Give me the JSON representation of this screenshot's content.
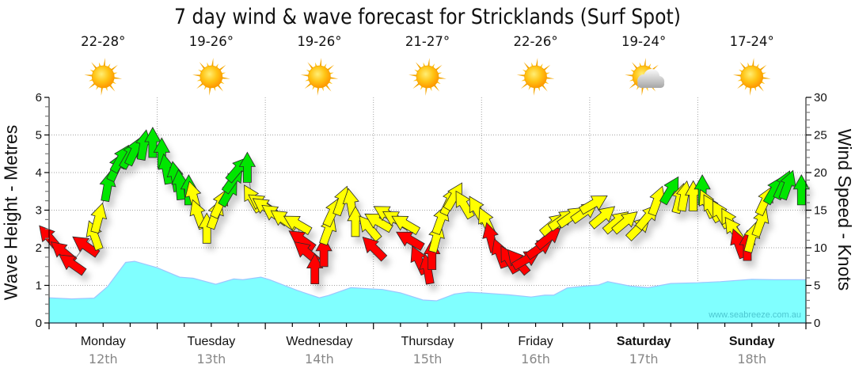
{
  "chart_data": {
    "type": "area",
    "title": "7 day wind & wave forecast for Stricklands (Surf Spot)",
    "ylabel": "Wave Height - Metres",
    "y2label": "Wind Speed - Knots",
    "xlim": [
      0,
      168
    ],
    "ylim": [
      0,
      6
    ],
    "yticks": [
      0,
      1,
      2,
      3,
      4,
      5,
      6
    ],
    "y2lim": [
      0,
      30
    ],
    "y2ticks": [
      0,
      5,
      10,
      15,
      20,
      25,
      30
    ],
    "grid": true,
    "x_tick_labels": [
      {
        "day": "Monday",
        "date": "12th",
        "weekend": false
      },
      {
        "day": "Tuesday",
        "date": "13th",
        "weekend": false
      },
      {
        "day": "Wednesday",
        "date": "14th",
        "weekend": false
      },
      {
        "day": "Thursday",
        "date": "15th",
        "weekend": false
      },
      {
        "day": "Friday",
        "date": "16th",
        "weekend": false
      },
      {
        "day": "Saturday",
        "date": "17th",
        "weekend": true
      },
      {
        "day": "Sunday",
        "date": "18th",
        "weekend": true
      }
    ],
    "watermark": "www.seabreeze.com.au",
    "wave_fill_color": "#80ffff",
    "wave_line_color": "#9cc6ff",
    "wave_height_m": [
      [
        0,
        0.67
      ],
      [
        5,
        0.64
      ],
      [
        10,
        0.66
      ],
      [
        13,
        0.97
      ],
      [
        17,
        1.61
      ],
      [
        19,
        1.64
      ],
      [
        24,
        1.47
      ],
      [
        29,
        1.22
      ],
      [
        32,
        1.19
      ],
      [
        37,
        1.03
      ],
      [
        41,
        1.17
      ],
      [
        43,
        1.15
      ],
      [
        47,
        1.22
      ],
      [
        49,
        1.15
      ],
      [
        55,
        0.87
      ],
      [
        60,
        0.67
      ],
      [
        62,
        0.73
      ],
      [
        67,
        0.94
      ],
      [
        71,
        0.91
      ],
      [
        74,
        0.89
      ],
      [
        78,
        0.8
      ],
      [
        83,
        0.61
      ],
      [
        86,
        0.59
      ],
      [
        90,
        0.77
      ],
      [
        93,
        0.82
      ],
      [
        96,
        0.8
      ],
      [
        102,
        0.75
      ],
      [
        107,
        0.69
      ],
      [
        110,
        0.74
      ],
      [
        112,
        0.74
      ],
      [
        115,
        0.93
      ],
      [
        119,
        0.98
      ],
      [
        122,
        1.01
      ],
      [
        124,
        1.1
      ],
      [
        129,
        0.98
      ],
      [
        133,
        0.94
      ],
      [
        138,
        1.05
      ],
      [
        144,
        1.07
      ],
      [
        149,
        1.1
      ],
      [
        156,
        1.16
      ],
      [
        161,
        1.15
      ],
      [
        168,
        1.15
      ]
    ],
    "wind_level_colors": {
      "red": "#ff0000",
      "yellow": "#ffff00",
      "green": "#00e600"
    },
    "wind_knots": [
      [
        0,
        11.4,
        320,
        "red"
      ],
      [
        3,
        9.5,
        310,
        "red"
      ],
      [
        5,
        7.9,
        305,
        "red"
      ],
      [
        8,
        10.3,
        305,
        "red"
      ],
      [
        10,
        11.7,
        340,
        "yellow"
      ],
      [
        11,
        14.0,
        15,
        "yellow"
      ],
      [
        13,
        18.2,
        10,
        "green"
      ],
      [
        15,
        20.8,
        25,
        "green"
      ],
      [
        16,
        21.9,
        30,
        "green"
      ],
      [
        18,
        22.4,
        30,
        "green"
      ],
      [
        19,
        22.9,
        25,
        "green"
      ],
      [
        21,
        23.7,
        10,
        "green"
      ],
      [
        23,
        24.0,
        0,
        "green"
      ],
      [
        25,
        22.6,
        0,
        "green"
      ],
      [
        26,
        20.5,
        350,
        "green"
      ],
      [
        28,
        19.5,
        350,
        "green"
      ],
      [
        29,
        18.4,
        355,
        "green"
      ],
      [
        31,
        17.7,
        0,
        "green"
      ],
      [
        32,
        16.9,
        345,
        "yellow"
      ],
      [
        33,
        14.5,
        340,
        "yellow"
      ],
      [
        35,
        12.6,
        0,
        "yellow"
      ],
      [
        37,
        14.5,
        20,
        "yellow"
      ],
      [
        38,
        15.9,
        25,
        "yellow"
      ],
      [
        40,
        17.4,
        30,
        "green"
      ],
      [
        41,
        19.1,
        35,
        "green"
      ],
      [
        42,
        20.5,
        40,
        "green"
      ],
      [
        44,
        20.7,
        0,
        "green"
      ],
      [
        45,
        16.6,
        330,
        "yellow"
      ],
      [
        47,
        15.9,
        305,
        "yellow"
      ],
      [
        48,
        15.4,
        305,
        "yellow"
      ],
      [
        50,
        14.5,
        305,
        "yellow"
      ],
      [
        52,
        13.8,
        305,
        "yellow"
      ],
      [
        55,
        13.2,
        300,
        "yellow"
      ],
      [
        56,
        11.1,
        305,
        "red"
      ],
      [
        57,
        9.5,
        310,
        "red"
      ],
      [
        59,
        7.2,
        0,
        "red"
      ],
      [
        61,
        9.5,
        0,
        "red"
      ],
      [
        62,
        12.4,
        20,
        "yellow"
      ],
      [
        63,
        14.8,
        25,
        "yellow"
      ],
      [
        65,
        16.3,
        20,
        "yellow"
      ],
      [
        67,
        15.9,
        350,
        "yellow"
      ],
      [
        68,
        13.5,
        0,
        "yellow"
      ],
      [
        71,
        12.7,
        320,
        "yellow"
      ],
      [
        72,
        10.0,
        315,
        "red"
      ],
      [
        73,
        13.5,
        300,
        "yellow"
      ],
      [
        75,
        14.5,
        300,
        "yellow"
      ],
      [
        77,
        13.8,
        300,
        "yellow"
      ],
      [
        79,
        13.2,
        300,
        "yellow"
      ],
      [
        80,
        11.1,
        300,
        "red"
      ],
      [
        82,
        8.4,
        335,
        "red"
      ],
      [
        84,
        7.2,
        350,
        "red"
      ],
      [
        85,
        9.1,
        0,
        "red"
      ],
      [
        86,
        11.4,
        15,
        "yellow"
      ],
      [
        87,
        13.8,
        20,
        "yellow"
      ],
      [
        89,
        16.3,
        25,
        "yellow"
      ],
      [
        90,
        16.9,
        30,
        "yellow"
      ],
      [
        92,
        15.8,
        330,
        "yellow"
      ],
      [
        95,
        15.1,
        330,
        "yellow"
      ],
      [
        97,
        13.5,
        335,
        "yellow"
      ],
      [
        98,
        11.4,
        345,
        "red"
      ],
      [
        100,
        9.3,
        340,
        "red"
      ],
      [
        102,
        8.5,
        330,
        "red"
      ],
      [
        104,
        8.2,
        320,
        "red"
      ],
      [
        106,
        8.5,
        60,
        "red"
      ],
      [
        109,
        10.0,
        55,
        "red"
      ],
      [
        111,
        11.4,
        50,
        "red"
      ],
      [
        112,
        13.2,
        50,
        "yellow"
      ],
      [
        114,
        13.8,
        55,
        "yellow"
      ],
      [
        116,
        14.2,
        55,
        "yellow"
      ],
      [
        119,
        14.8,
        55,
        "yellow"
      ],
      [
        121,
        15.9,
        60,
        "yellow"
      ],
      [
        123,
        14.2,
        50,
        "yellow"
      ],
      [
        126,
        13.5,
        50,
        "yellow"
      ],
      [
        128,
        13.5,
        50,
        "yellow"
      ],
      [
        131,
        12.7,
        45,
        "yellow"
      ],
      [
        133,
        14.2,
        40,
        "yellow"
      ],
      [
        135,
        16.3,
        20,
        "yellow"
      ],
      [
        138,
        17.7,
        30,
        "green"
      ],
      [
        140,
        16.6,
        15,
        "yellow"
      ],
      [
        141,
        16.9,
        10,
        "yellow"
      ],
      [
        143,
        16.9,
        0,
        "yellow"
      ],
      [
        145,
        17.7,
        0,
        "green"
      ],
      [
        146,
        15.9,
        335,
        "yellow"
      ],
      [
        147,
        15.3,
        330,
        "yellow"
      ],
      [
        149,
        14.5,
        330,
        "yellow"
      ],
      [
        151,
        13.5,
        330,
        "yellow"
      ],
      [
        152,
        12.4,
        325,
        "yellow"
      ],
      [
        153,
        10.6,
        340,
        "red"
      ],
      [
        155,
        10.3,
        0,
        "red"
      ],
      [
        156,
        11.4,
        15,
        "yellow"
      ],
      [
        158,
        13.5,
        20,
        "yellow"
      ],
      [
        159,
        16.3,
        25,
        "yellow"
      ],
      [
        161,
        17.7,
        30,
        "green"
      ],
      [
        163,
        18.4,
        25,
        "green"
      ],
      [
        164,
        18.4,
        20,
        "green"
      ],
      [
        167,
        17.7,
        0,
        "green"
      ]
    ]
  },
  "daily_forecast": [
    {
      "temp": "22-28°",
      "icon": "sunny"
    },
    {
      "temp": "19-26°",
      "icon": "sunny"
    },
    {
      "temp": "19-26°",
      "icon": "sunny"
    },
    {
      "temp": "21-27°",
      "icon": "sunny"
    },
    {
      "temp": "22-26°",
      "icon": "sunny"
    },
    {
      "temp": "19-24°",
      "icon": "partly-cloudy"
    },
    {
      "temp": "17-24°",
      "icon": "sunny"
    }
  ]
}
